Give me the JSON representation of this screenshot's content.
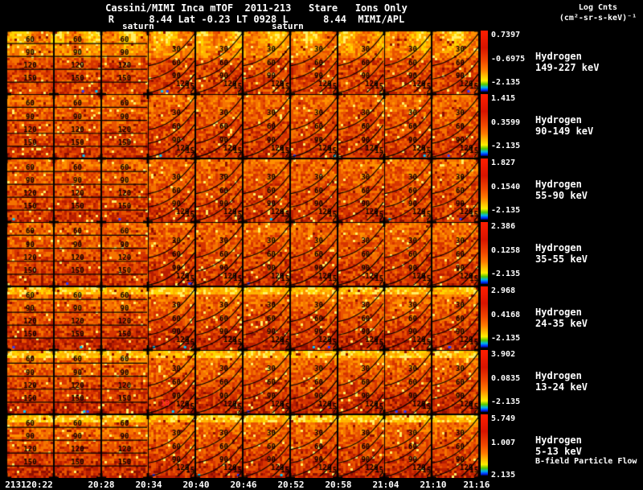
{
  "chart_data": {
    "type": "heatmap",
    "title": "Cassini/MIMI Inca mTOF  2011-213   Stare   Ions Only",
    "subtitle": "R      8.44 Lat -0.23 LT 0928 L      8.44  MIMI/APL",
    "colorbar_label": [
      "Log Cnts",
      "(cm²-sr-s-keV)⁻¹"
    ],
    "saturn_markers": [
      "saturn",
      "saturn"
    ],
    "x_ticks": [
      "213120:22",
      "20:28",
      "20:34",
      "20:40",
      "20:46",
      "20:52",
      "20:58",
      "21:04",
      "21:10",
      "21:16"
    ],
    "contour_levels": [
      30,
      60,
      90,
      120,
      150
    ],
    "contour_levels_left": [
      60,
      90,
      120,
      150
    ],
    "grid": {
      "columns": 10,
      "rows": 7
    },
    "rows": [
      {
        "species": "Hydrogen",
        "band": "149-227 keV",
        "colorbar_ticks": [
          "0.7397",
          "-0.6975",
          "-2.135"
        ]
      },
      {
        "species": "Hydrogen",
        "band": "90-149 keV",
        "colorbar_ticks": [
          "1.415",
          "0.3599",
          "-2.135"
        ]
      },
      {
        "species": "Hydrogen",
        "band": "55-90 keV",
        "colorbar_ticks": [
          "1.827",
          "0.1540",
          "-2.135"
        ]
      },
      {
        "species": "Hydrogen",
        "band": "35-55 keV",
        "colorbar_ticks": [
          "2.386",
          "0.1258",
          "-2.135"
        ]
      },
      {
        "species": "Hydrogen",
        "band": "24-35 keV",
        "colorbar_ticks": [
          "2.968",
          "0.4168",
          "-2.135"
        ]
      },
      {
        "species": "Hydrogen",
        "band": "13-24 keV",
        "colorbar_ticks": [
          "3.902",
          "0.0835",
          "-2.135"
        ]
      },
      {
        "species": "Hydrogen",
        "band": "5-13 keV",
        "colorbar_ticks": [
          "5.749",
          "1.007",
          "2.135"
        ]
      }
    ],
    "flow_label": "B-field Particle Flow",
    "b_marker": "1B",
    "colors": {
      "background": "#000000",
      "text": "#ffffff",
      "contour": "#000000",
      "marker_red": "#ff2a2a",
      "palette": [
        "#3a0000",
        "#6b0500",
        "#8f0f00",
        "#b81d00",
        "#d63400",
        "#e85200",
        "#f57200",
        "#ff9000",
        "#ffb300",
        "#ffd400",
        "#ffef66"
      ],
      "colorbar_gradient": [
        "#ff1e00 0%",
        "#d81400 28%",
        "#f04800 50%",
        "#ff7a00 64%",
        "#ffc800 76%",
        "#ffee00 82%",
        "#55c800 88%",
        "#00b4e6 93%",
        "#0032ff 97%",
        "#000060 100%"
      ]
    }
  }
}
